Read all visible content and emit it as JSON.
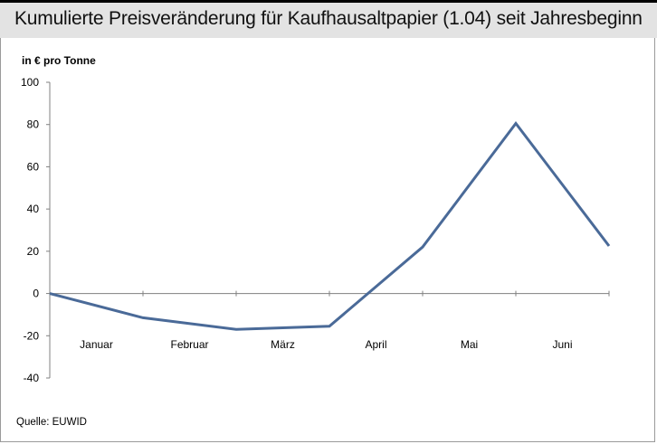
{
  "header": {
    "title": "Kumulierte Preisveränderung für Kaufhausaltpapier (1.04) seit Jahresbeginn"
  },
  "footer": {
    "source": "Quelle: EUWID"
  },
  "chart_data": {
    "type": "line",
    "title": "Kumulierte Preisveränderung für Kaufhausaltpapier (1.04) seit Jahresbeginn",
    "ylabel": "in € pro Tonne",
    "xlabel": "",
    "categories": [
      "Januar",
      "Februar",
      "März",
      "April",
      "Mai",
      "Juni"
    ],
    "ylim": [
      -40,
      100
    ],
    "yticks": [
      100,
      80,
      60,
      40,
      20,
      0,
      -20,
      -40
    ],
    "grid": false,
    "series": [
      {
        "color": "#4a6a98",
        "x": [
          0,
          1,
          2,
          3,
          4,
          5,
          6
        ],
        "values": [
          0,
          -11.5,
          -17,
          -15.5,
          22,
          80.5,
          22.5
        ]
      }
    ]
  }
}
